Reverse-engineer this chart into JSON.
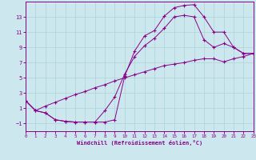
{
  "bg_color": "#cce8ee",
  "grid_color": "#aad4d8",
  "line_color": "#880088",
  "xlabel": "Windchill (Refroidissement éolien,°C)",
  "xlim": [
    0,
    23
  ],
  "ylim": [
    -2.0,
    15.0
  ],
  "xticks": [
    0,
    1,
    2,
    3,
    4,
    5,
    6,
    7,
    8,
    9,
    10,
    11,
    12,
    13,
    14,
    15,
    16,
    17,
    18,
    19,
    20,
    21,
    22,
    23
  ],
  "yticks": [
    -1,
    1,
    3,
    5,
    7,
    9,
    11,
    13
  ],
  "curve_upper_x": [
    0,
    1,
    2,
    3,
    4,
    5,
    6,
    7,
    8,
    9,
    10,
    11,
    12,
    13,
    14,
    15,
    16,
    17,
    18,
    19,
    20,
    21,
    22,
    23
  ],
  "curve_upper_y": [
    2.0,
    0.7,
    0.4,
    -0.5,
    -0.7,
    -0.8,
    -0.8,
    -0.8,
    -0.8,
    -0.5,
    5.2,
    8.5,
    10.5,
    11.2,
    13.1,
    14.2,
    14.5,
    14.6,
    13.0,
    11.0,
    11.0,
    9.0,
    8.2,
    8.2
  ],
  "curve_mid_x": [
    0,
    1,
    2,
    3,
    4,
    5,
    6,
    7,
    8,
    9,
    10,
    11,
    12,
    13,
    14,
    15,
    16,
    17,
    18,
    19,
    20,
    21,
    22,
    23
  ],
  "curve_mid_y": [
    2.0,
    0.7,
    0.4,
    -0.5,
    -0.7,
    -0.8,
    -0.8,
    -0.8,
    0.7,
    2.5,
    5.5,
    7.8,
    9.2,
    10.2,
    11.5,
    13.0,
    13.2,
    13.0,
    10.0,
    9.0,
    9.5,
    9.0,
    8.2,
    8.2
  ],
  "curve_lower_x": [
    0,
    1,
    2,
    3,
    4,
    5,
    6,
    7,
    8,
    9,
    10,
    11,
    12,
    13,
    14,
    15,
    16,
    17,
    18,
    19,
    20,
    21,
    22,
    23
  ],
  "curve_lower_y": [
    2.0,
    0.7,
    1.3,
    1.8,
    2.3,
    2.8,
    3.2,
    3.7,
    4.1,
    4.6,
    5.0,
    5.4,
    5.8,
    6.2,
    6.6,
    6.8,
    7.0,
    7.3,
    7.5,
    7.5,
    7.1,
    7.5,
    7.8,
    8.2
  ]
}
